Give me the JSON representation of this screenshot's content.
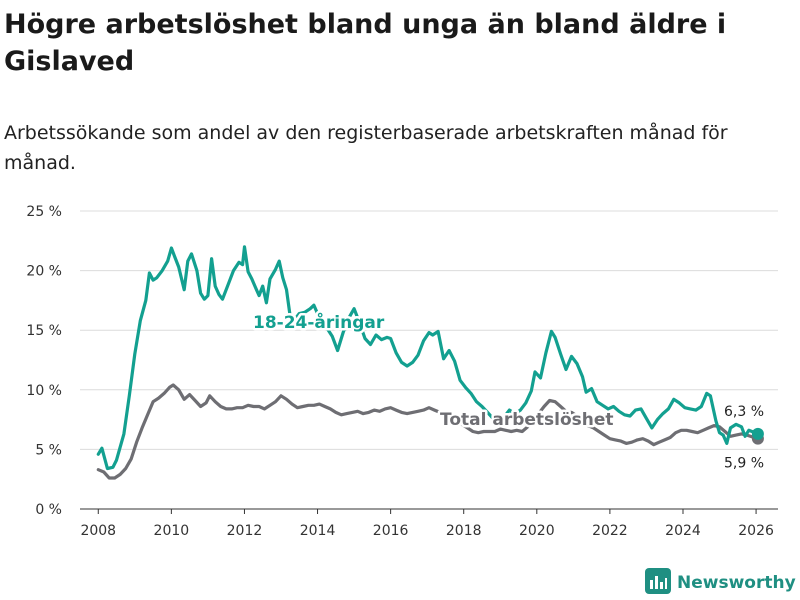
{
  "title": "Högre arbetslöshet bland unga än bland äldre i Gislaved",
  "subtitle": "Arbetssökande som andel av den registerbaserade arbetskraften månad för månad.",
  "brand": {
    "name": "Newsworthy",
    "icon": "newsworthy-logo-icon",
    "color": "#1f8f82"
  },
  "chart_data": {
    "type": "line",
    "title": "Högre arbetslöshet bland unga än bland äldre i Gislaved",
    "xlabel": "",
    "ylabel": "",
    "xlim": [
      2007.5,
      2026.6
    ],
    "ylim": [
      0,
      25
    ],
    "y_ticks": [
      0,
      5,
      10,
      15,
      20,
      25
    ],
    "y_tick_labels": [
      "0 %",
      "5 %",
      "10 %",
      "15 %",
      "20 %",
      "25 %"
    ],
    "x_ticks": [
      2008,
      2010,
      2012,
      2014,
      2016,
      2018,
      2020,
      2022,
      2024,
      2026
    ],
    "x_tick_labels": [
      "2008",
      "2010",
      "2012",
      "2014",
      "2016",
      "2018",
      "2020",
      "2022",
      "2024",
      "2026"
    ],
    "grid": true,
    "series": [
      {
        "name": "18-24-åringar",
        "label": "18-24-åringar",
        "color": "#13a090",
        "end_label": "6,3 %",
        "points": [
          [
            2008.0,
            4.6
          ],
          [
            2008.1,
            5.1
          ],
          [
            2008.25,
            3.4
          ],
          [
            2008.4,
            3.5
          ],
          [
            2008.5,
            4.1
          ],
          [
            2008.7,
            6.3
          ],
          [
            2008.85,
            9.5
          ],
          [
            2009.0,
            13.0
          ],
          [
            2009.15,
            15.8
          ],
          [
            2009.3,
            17.5
          ],
          [
            2009.4,
            19.8
          ],
          [
            2009.5,
            19.2
          ],
          [
            2009.6,
            19.4
          ],
          [
            2009.75,
            20.0
          ],
          [
            2009.9,
            20.8
          ],
          [
            2010.0,
            21.9
          ],
          [
            2010.1,
            21.1
          ],
          [
            2010.2,
            20.3
          ],
          [
            2010.35,
            18.4
          ],
          [
            2010.45,
            20.8
          ],
          [
            2010.55,
            21.4
          ],
          [
            2010.7,
            20.0
          ],
          [
            2010.8,
            18.1
          ],
          [
            2010.9,
            17.6
          ],
          [
            2011.0,
            17.9
          ],
          [
            2011.1,
            21.0
          ],
          [
            2011.2,
            18.7
          ],
          [
            2011.3,
            18.0
          ],
          [
            2011.4,
            17.6
          ],
          [
            2011.55,
            18.8
          ],
          [
            2011.7,
            20.0
          ],
          [
            2011.85,
            20.7
          ],
          [
            2011.95,
            20.5
          ],
          [
            2012.0,
            22.0
          ],
          [
            2012.1,
            19.9
          ],
          [
            2012.2,
            19.3
          ],
          [
            2012.3,
            18.6
          ],
          [
            2012.4,
            17.9
          ],
          [
            2012.5,
            18.7
          ],
          [
            2012.6,
            17.3
          ],
          [
            2012.7,
            19.3
          ],
          [
            2012.85,
            20.1
          ],
          [
            2012.95,
            20.8
          ],
          [
            2013.05,
            19.4
          ],
          [
            2013.15,
            18.4
          ],
          [
            2013.25,
            16.2
          ],
          [
            2013.35,
            15.8
          ],
          [
            2013.5,
            16.4
          ],
          [
            2013.65,
            16.5
          ],
          [
            2013.8,
            16.8
          ],
          [
            2013.9,
            17.1
          ],
          [
            2014.0,
            16.4
          ],
          [
            2014.1,
            15.8
          ],
          [
            2014.25,
            15.2
          ],
          [
            2014.4,
            14.5
          ],
          [
            2014.55,
            13.3
          ],
          [
            2014.7,
            14.8
          ],
          [
            2014.85,
            16.0
          ],
          [
            2015.0,
            16.8
          ],
          [
            2015.15,
            15.6
          ],
          [
            2015.3,
            14.3
          ],
          [
            2015.45,
            13.8
          ],
          [
            2015.6,
            14.6
          ],
          [
            2015.75,
            14.2
          ],
          [
            2015.9,
            14.4
          ],
          [
            2016.0,
            14.3
          ],
          [
            2016.15,
            13.1
          ],
          [
            2016.3,
            12.3
          ],
          [
            2016.45,
            12.0
          ],
          [
            2016.6,
            12.3
          ],
          [
            2016.75,
            12.9
          ],
          [
            2016.9,
            14.1
          ],
          [
            2017.05,
            14.8
          ],
          [
            2017.15,
            14.6
          ],
          [
            2017.3,
            14.9
          ],
          [
            2017.45,
            12.6
          ],
          [
            2017.6,
            13.3
          ],
          [
            2017.75,
            12.4
          ],
          [
            2017.9,
            10.8
          ],
          [
            2018.05,
            10.2
          ],
          [
            2018.2,
            9.7
          ],
          [
            2018.35,
            9.0
          ],
          [
            2018.5,
            8.6
          ],
          [
            2018.65,
            8.1
          ],
          [
            2018.8,
            7.6
          ],
          [
            2018.95,
            7.3
          ],
          [
            2019.1,
            7.7
          ],
          [
            2019.25,
            8.3
          ],
          [
            2019.4,
            8.0
          ],
          [
            2019.55,
            8.3
          ],
          [
            2019.7,
            8.9
          ],
          [
            2019.85,
            9.9
          ],
          [
            2019.95,
            11.5
          ],
          [
            2020.1,
            11.0
          ],
          [
            2020.25,
            13.1
          ],
          [
            2020.4,
            14.9
          ],
          [
            2020.5,
            14.4
          ],
          [
            2020.65,
            13.0
          ],
          [
            2020.8,
            11.7
          ],
          [
            2020.95,
            12.8
          ],
          [
            2021.1,
            12.2
          ],
          [
            2021.25,
            11.1
          ],
          [
            2021.35,
            9.8
          ],
          [
            2021.5,
            10.1
          ],
          [
            2021.65,
            9.0
          ],
          [
            2021.8,
            8.7
          ],
          [
            2021.95,
            8.4
          ],
          [
            2022.1,
            8.6
          ],
          [
            2022.25,
            8.2
          ],
          [
            2022.4,
            7.9
          ],
          [
            2022.55,
            7.8
          ],
          [
            2022.7,
            8.3
          ],
          [
            2022.85,
            8.4
          ],
          [
            2023.0,
            7.6
          ],
          [
            2023.15,
            6.8
          ],
          [
            2023.3,
            7.5
          ],
          [
            2023.45,
            8.0
          ],
          [
            2023.6,
            8.4
          ],
          [
            2023.75,
            9.2
          ],
          [
            2023.9,
            8.9
          ],
          [
            2024.05,
            8.5
          ],
          [
            2024.2,
            8.4
          ],
          [
            2024.35,
            8.3
          ],
          [
            2024.5,
            8.6
          ],
          [
            2024.65,
            9.7
          ],
          [
            2024.75,
            9.5
          ],
          [
            2024.9,
            7.4
          ],
          [
            2025.0,
            6.4
          ],
          [
            2025.1,
            6.2
          ],
          [
            2025.2,
            5.5
          ],
          [
            2025.3,
            6.8
          ],
          [
            2025.45,
            7.1
          ],
          [
            2025.6,
            6.9
          ],
          [
            2025.7,
            6.1
          ],
          [
            2025.8,
            6.6
          ],
          [
            2026.05,
            6.3
          ]
        ]
      },
      {
        "name": "Total arbetslöshet",
        "label": "Total arbetslöshet",
        "color": "#6e6e73",
        "end_label": "5,9 %",
        "points": [
          [
            2008.0,
            3.3
          ],
          [
            2008.15,
            3.1
          ],
          [
            2008.3,
            2.6
          ],
          [
            2008.45,
            2.6
          ],
          [
            2008.6,
            2.9
          ],
          [
            2008.75,
            3.4
          ],
          [
            2008.9,
            4.2
          ],
          [
            2009.05,
            5.6
          ],
          [
            2009.2,
            6.8
          ],
          [
            2009.35,
            7.9
          ],
          [
            2009.5,
            9.0
          ],
          [
            2009.65,
            9.3
          ],
          [
            2009.8,
            9.7
          ],
          [
            2009.95,
            10.2
          ],
          [
            2010.05,
            10.4
          ],
          [
            2010.2,
            10.0
          ],
          [
            2010.35,
            9.2
          ],
          [
            2010.5,
            9.6
          ],
          [
            2010.65,
            9.1
          ],
          [
            2010.8,
            8.6
          ],
          [
            2010.95,
            8.9
          ],
          [
            2011.05,
            9.5
          ],
          [
            2011.2,
            9.0
          ],
          [
            2011.35,
            8.6
          ],
          [
            2011.5,
            8.4
          ],
          [
            2011.65,
            8.4
          ],
          [
            2011.8,
            8.5
          ],
          [
            2011.95,
            8.5
          ],
          [
            2012.1,
            8.7
          ],
          [
            2012.25,
            8.6
          ],
          [
            2012.4,
            8.6
          ],
          [
            2012.55,
            8.4
          ],
          [
            2012.7,
            8.7
          ],
          [
            2012.85,
            9.0
          ],
          [
            2013.0,
            9.5
          ],
          [
            2013.15,
            9.2
          ],
          [
            2013.3,
            8.8
          ],
          [
            2013.45,
            8.5
          ],
          [
            2013.6,
            8.6
          ],
          [
            2013.75,
            8.7
          ],
          [
            2013.9,
            8.7
          ],
          [
            2014.05,
            8.8
          ],
          [
            2014.2,
            8.6
          ],
          [
            2014.35,
            8.4
          ],
          [
            2014.5,
            8.1
          ],
          [
            2014.65,
            7.9
          ],
          [
            2014.8,
            8.0
          ],
          [
            2014.95,
            8.1
          ],
          [
            2015.1,
            8.2
          ],
          [
            2015.25,
            8.0
          ],
          [
            2015.4,
            8.1
          ],
          [
            2015.55,
            8.3
          ],
          [
            2015.7,
            8.2
          ],
          [
            2015.85,
            8.4
          ],
          [
            2016.0,
            8.5
          ],
          [
            2016.15,
            8.3
          ],
          [
            2016.3,
            8.1
          ],
          [
            2016.45,
            8.0
          ],
          [
            2016.6,
            8.1
          ],
          [
            2016.75,
            8.2
          ],
          [
            2016.9,
            8.3
          ],
          [
            2017.05,
            8.5
          ],
          [
            2017.2,
            8.3
          ],
          [
            2017.35,
            8.1
          ],
          [
            2017.5,
            7.9
          ],
          [
            2017.65,
            7.7
          ],
          [
            2017.8,
            7.4
          ],
          [
            2017.95,
            7.1
          ],
          [
            2018.1,
            6.8
          ],
          [
            2018.25,
            6.5
          ],
          [
            2018.4,
            6.4
          ],
          [
            2018.55,
            6.5
          ],
          [
            2018.7,
            6.5
          ],
          [
            2018.85,
            6.5
          ],
          [
            2019.0,
            6.7
          ],
          [
            2019.15,
            6.6
          ],
          [
            2019.3,
            6.5
          ],
          [
            2019.45,
            6.6
          ],
          [
            2019.6,
            6.5
          ],
          [
            2019.75,
            6.9
          ],
          [
            2019.9,
            7.4
          ],
          [
            2020.05,
            8.0
          ],
          [
            2020.2,
            8.6
          ],
          [
            2020.35,
            9.1
          ],
          [
            2020.5,
            9.0
          ],
          [
            2020.65,
            8.6
          ],
          [
            2020.8,
            8.2
          ],
          [
            2020.95,
            8.1
          ],
          [
            2021.1,
            7.8
          ],
          [
            2021.25,
            7.4
          ],
          [
            2021.4,
            7.0
          ],
          [
            2021.55,
            6.8
          ],
          [
            2021.7,
            6.5
          ],
          [
            2021.85,
            6.2
          ],
          [
            2022.0,
            5.9
          ],
          [
            2022.15,
            5.8
          ],
          [
            2022.3,
            5.7
          ],
          [
            2022.45,
            5.5
          ],
          [
            2022.6,
            5.6
          ],
          [
            2022.75,
            5.8
          ],
          [
            2022.9,
            5.9
          ],
          [
            2023.05,
            5.7
          ],
          [
            2023.2,
            5.4
          ],
          [
            2023.35,
            5.6
          ],
          [
            2023.5,
            5.8
          ],
          [
            2023.65,
            6.0
          ],
          [
            2023.8,
            6.4
          ],
          [
            2023.95,
            6.6
          ],
          [
            2024.1,
            6.6
          ],
          [
            2024.25,
            6.5
          ],
          [
            2024.4,
            6.4
          ],
          [
            2024.55,
            6.6
          ],
          [
            2024.7,
            6.8
          ],
          [
            2024.85,
            7.0
          ],
          [
            2025.0,
            6.9
          ],
          [
            2025.15,
            6.5
          ],
          [
            2025.3,
            6.1
          ],
          [
            2025.45,
            6.2
          ],
          [
            2025.6,
            6.3
          ],
          [
            2025.75,
            6.2
          ],
          [
            2026.05,
            5.9
          ]
        ]
      }
    ]
  }
}
